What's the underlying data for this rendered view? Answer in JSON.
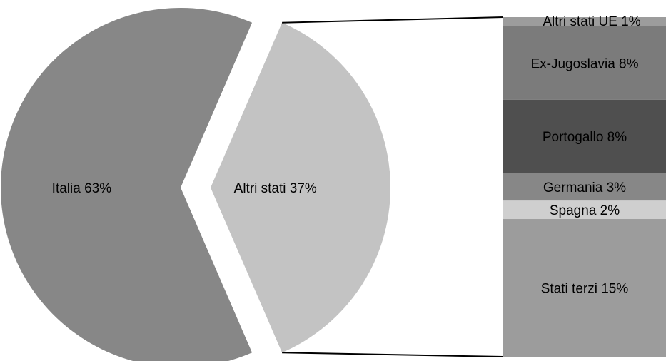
{
  "chart_data": {
    "type": "pie",
    "pie": {
      "slices": [
        {
          "label": "Italia 63%",
          "value": 63,
          "color": "#878787"
        },
        {
          "label": "Altri stati 37%",
          "value": 37,
          "color": "#c3c3c3"
        }
      ]
    },
    "breakdown": {
      "of": "Altri stati 37%",
      "segments": [
        {
          "label": "Altri stati UE 1%",
          "value": 1,
          "color": "#9c9c9c"
        },
        {
          "label": "Ex-Jugoslavia 8%",
          "value": 8,
          "color": "#7b7b7b"
        },
        {
          "label": "Portogallo 8%",
          "value": 8,
          "color": "#4f4f4f"
        },
        {
          "label": "Germania 3%",
          "value": 3,
          "color": "#878787"
        },
        {
          "label": "Spagna 2%",
          "value": 2,
          "color": "#cfcfcf"
        },
        {
          "label": "Stati terzi 15%",
          "value": 15,
          "color": "#9c9c9c"
        }
      ]
    },
    "legend": "none",
    "grid": false
  }
}
